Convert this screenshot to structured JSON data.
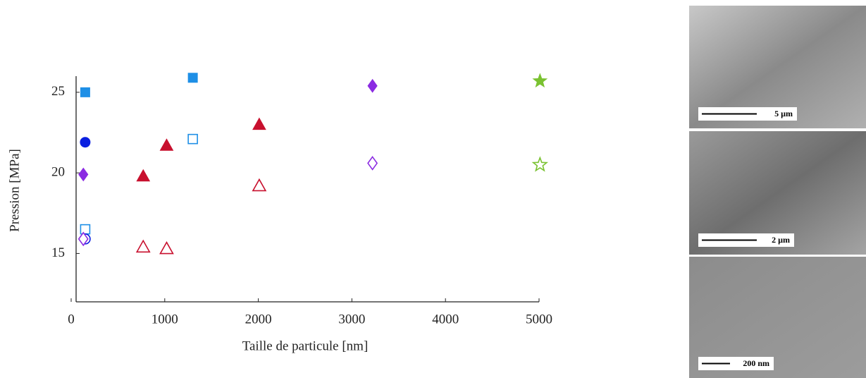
{
  "chart_data": {
    "type": "scatter",
    "xlabel": "Taille de particule [nm]",
    "ylabel": "Pression [MPa]",
    "xlim": [
      0,
      5000
    ],
    "ylim": [
      12,
      26
    ],
    "xticks": [
      0,
      1000,
      2000,
      3000,
      4000,
      5000
    ],
    "yticks": [
      15,
      20,
      25
    ],
    "series": [
      {
        "color": "#1e8fe6",
        "marker": "square",
        "filled": true,
        "x": [
          150,
          1300
        ],
        "values": [
          25.0,
          25.9
        ]
      },
      {
        "color": "#1e8fe6",
        "marker": "square",
        "filled": false,
        "x": [
          150,
          1300
        ],
        "values": [
          16.5,
          22.1
        ]
      },
      {
        "color": "#0a1fe0",
        "marker": "circle",
        "filled": true,
        "x": [
          150
        ],
        "values": [
          21.9
        ]
      },
      {
        "color": "#0a1fe0",
        "marker": "circle",
        "filled": false,
        "x": [
          150
        ],
        "values": [
          15.9
        ]
      },
      {
        "color": "#8b2be2",
        "marker": "diamond",
        "filled": true,
        "x": [
          130,
          3220
        ],
        "values": [
          19.9,
          25.4
        ]
      },
      {
        "color": "#8b2be2",
        "marker": "diamond",
        "filled": false,
        "x": [
          130,
          3220
        ],
        "values": [
          15.9,
          20.6
        ]
      },
      {
        "color": "#c8102e",
        "marker": "triangle",
        "filled": true,
        "x": [
          770,
          1020,
          2010
        ],
        "values": [
          19.8,
          21.7,
          23.0
        ]
      },
      {
        "color": "#c8102e",
        "marker": "triangle",
        "filled": false,
        "x": [
          770,
          1020,
          2010
        ],
        "values": [
          15.4,
          15.3,
          19.2
        ]
      },
      {
        "color": "#7ac231",
        "marker": "star",
        "filled": true,
        "x": [
          5010
        ],
        "values": [
          25.7
        ]
      },
      {
        "color": "#7ac231",
        "marker": "star",
        "filled": false,
        "x": [
          5010
        ],
        "values": [
          20.5
        ]
      }
    ]
  },
  "images": [
    {
      "scale": "5 µm"
    },
    {
      "scale": "2 µm"
    },
    {
      "scale": "200 nm"
    }
  ]
}
